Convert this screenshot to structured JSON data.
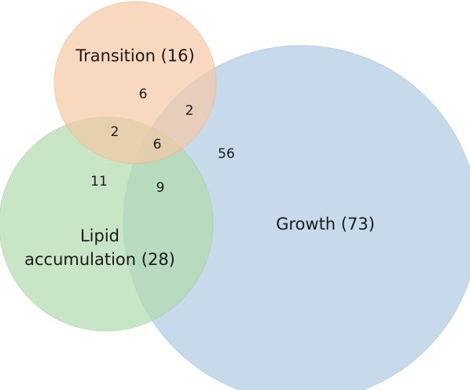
{
  "sets": {
    "transition": {
      "label": "Transition (16)",
      "color": "#f7c7a3",
      "stroke": "#efb88f"
    },
    "growth": {
      "label": "Growth (73)",
      "color": "#b9d2e7",
      "stroke": "#a9c4db"
    },
    "lipid": {
      "label_line1": "Lipid",
      "label_line2": "accumulation (28)",
      "color": "#b4dcb0",
      "stroke": "#a3d19e"
    }
  },
  "regions": {
    "transition_only": "6",
    "transition_growth": "2",
    "transition_lipid": "2",
    "all_three": "6",
    "growth_only": "56",
    "lipid_only": "11",
    "lipid_growth": "9"
  }
}
